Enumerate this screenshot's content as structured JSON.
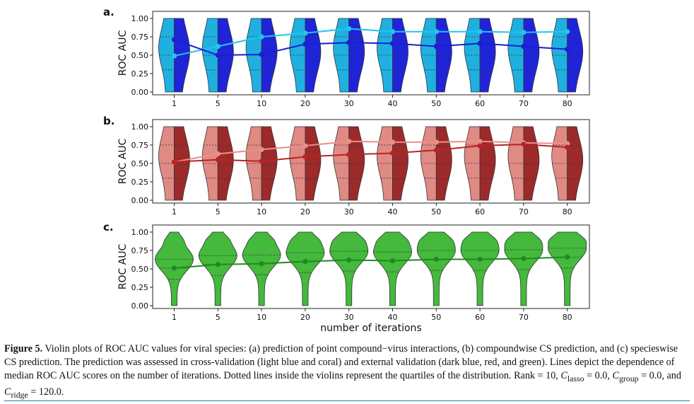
{
  "figure": {
    "caption_label": "Figure 5.",
    "caption_pre": " Violin plots of ROC AUC values for viral species: (a) prediction of point compound−virus interactions, (b) compoundwise CS prediction, and (c) specieswise CS prediction. The prediction was assessed in cross-validation (light blue and coral) and external validation (dark blue, red, and green). Lines depict the dependence of median ROC AUC scores on the number of iterations. Dotted lines inside the violins represent the quartiles of the distribution. Rank = 10, ",
    "c_sym": "C",
    "sub_lasso": "lasso",
    "sub_group": "group",
    "sub_ridge": "ridge",
    "eq_lasso": " = 0.0, ",
    "eq_group": " = 0.0, and ",
    "eq_ridge": " = 120.0."
  },
  "chart_data": [
    {
      "panel": "a.",
      "type": "violin",
      "ylabel": "ROC AUC",
      "xlabel": "",
      "categories": [
        "1",
        "5",
        "10",
        "20",
        "30",
        "40",
        "50",
        "60",
        "70",
        "80"
      ],
      "yticks": [
        "0.00",
        "0.25",
        "0.50",
        "0.75",
        "1.00"
      ],
      "ylim": [
        0,
        1
      ],
      "split": true,
      "series": [
        {
          "color": "#1fb0e0",
          "line_color": "#22c4f0",
          "medians": [
            0.49,
            0.62,
            0.75,
            0.8,
            0.86,
            0.82,
            0.82,
            0.82,
            0.81,
            0.82
          ]
        },
        {
          "color": "#1f24d8",
          "line_color": "#1a1fd0",
          "medians": [
            0.71,
            0.5,
            0.51,
            0.65,
            0.67,
            0.66,
            0.62,
            0.66,
            0.62,
            0.58
          ]
        }
      ]
    },
    {
      "panel": "b.",
      "type": "violin",
      "ylabel": "ROC AUC",
      "xlabel": "",
      "categories": [
        "1",
        "5",
        "10",
        "20",
        "30",
        "40",
        "50",
        "60",
        "70",
        "80"
      ],
      "yticks": [
        "0.00",
        "0.25",
        "0.50",
        "0.75",
        "1.00"
      ],
      "ylim": [
        0,
        1
      ],
      "split": true,
      "series": [
        {
          "color": "#e08a84",
          "line_color": "#ec8e88",
          "medians": [
            0.52,
            0.63,
            0.69,
            0.74,
            0.8,
            0.79,
            0.79,
            0.8,
            0.78,
            0.77
          ]
        },
        {
          "color": "#9c2a2a",
          "line_color": "#b82424",
          "medians": [
            0.52,
            0.55,
            0.53,
            0.59,
            0.62,
            0.64,
            0.68,
            0.74,
            0.76,
            0.72
          ]
        }
      ]
    },
    {
      "panel": "c.",
      "type": "violin",
      "ylabel": "ROC AUC",
      "xlabel": "number of iterations",
      "categories": [
        "1",
        "5",
        "10",
        "20",
        "30",
        "40",
        "50",
        "60",
        "70",
        "80"
      ],
      "yticks": [
        "0.00",
        "0.25",
        "0.50",
        "0.75",
        "1.00"
      ],
      "ylim": [
        0,
        1
      ],
      "split": false,
      "series": [
        {
          "color": "#44b93c",
          "line_color": "#1f8a1f",
          "medians": [
            0.51,
            0.56,
            0.57,
            0.6,
            0.62,
            0.61,
            0.63,
            0.63,
            0.64,
            0.66
          ]
        }
      ]
    }
  ]
}
